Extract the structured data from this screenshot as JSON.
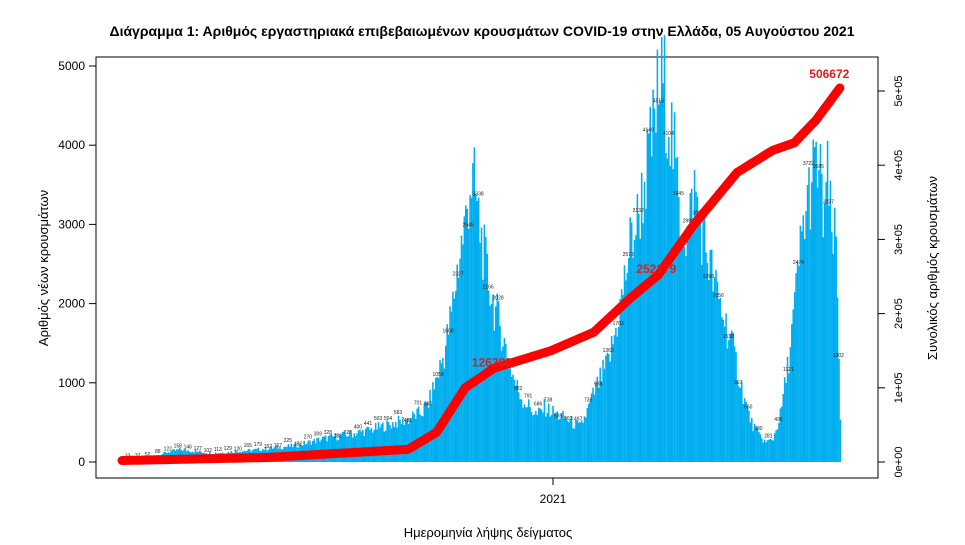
{
  "chart_data": {
    "type": "bar",
    "title": "Διάγραμμα 1: Αριθμός εργαστηριακά επιβεβαιωμένων κρουσμάτων COVID-19 στην Ελλάδα, 05 Αυγούστου 2021",
    "xlabel": "Ημερομηνία λήψης δείγματος",
    "ylabel": "Αριθμός νέων κρουσμάτων",
    "y2label": "Συνολικός αριθμός κρουσμάτων",
    "x_tick_labels": [
      "2021"
    ],
    "y_ticks": [
      0,
      1000,
      2000,
      3000,
      4000,
      5000
    ],
    "y_tick_labels": [
      "0",
      "1000",
      "2000",
      "3000",
      "4000",
      "5000"
    ],
    "y2_ticks": [
      0,
      100000,
      200000,
      300000,
      400000,
      500000
    ],
    "y2_tick_labels": [
      "0e+00",
      "1e+05",
      "2e+05",
      "3e+05",
      "4e+05",
      "5e+05"
    ],
    "ylim": [
      0,
      5000
    ],
    "y2lim": [
      0,
      500000
    ],
    "grid": false,
    "bar_color": "#00aeef",
    "line_color": "#ff0000",
    "series": [
      {
        "type": "bar",
        "axis": "left",
        "name": "",
        "breakpoints": [
          [
            0,
            30
          ],
          [
            10,
            40
          ],
          [
            20,
            60
          ],
          [
            30,
            120
          ],
          [
            40,
            160
          ],
          [
            50,
            140
          ],
          [
            60,
            120
          ],
          [
            70,
            120
          ],
          [
            80,
            140
          ],
          [
            90,
            150
          ],
          [
            100,
            170
          ],
          [
            110,
            190
          ],
          [
            120,
            210
          ],
          [
            130,
            250
          ],
          [
            140,
            300
          ],
          [
            150,
            330
          ],
          [
            160,
            360
          ],
          [
            170,
            400
          ],
          [
            180,
            450
          ],
          [
            190,
            500
          ],
          [
            200,
            550
          ],
          [
            210,
            650
          ],
          [
            215,
            800
          ],
          [
            220,
            1100
          ],
          [
            225,
            1400
          ],
          [
            230,
            1900
          ],
          [
            235,
            2600
          ],
          [
            240,
            3100
          ],
          [
            243,
            3611
          ],
          [
            246,
            3543
          ],
          [
            250,
            3000
          ],
          [
            255,
            2400
          ],
          [
            260,
            2000
          ],
          [
            265,
            1700
          ],
          [
            270,
            1300
          ],
          [
            275,
            1000
          ],
          [
            280,
            800
          ],
          [
            285,
            700
          ],
          [
            290,
            600
          ],
          [
            295,
            700
          ],
          [
            300,
            650
          ],
          [
            305,
            600
          ],
          [
            310,
            560
          ],
          [
            315,
            500
          ],
          [
            320,
            450
          ],
          [
            325,
            650
          ],
          [
            330,
            900
          ],
          [
            335,
            1100
          ],
          [
            340,
            1300
          ],
          [
            345,
            1700
          ],
          [
            350,
            2200
          ],
          [
            355,
            2800
          ],
          [
            360,
            3100
          ],
          [
            365,
            3600
          ],
          [
            370,
            4100
          ],
          [
            374,
            4680
          ],
          [
            378,
            4924
          ],
          [
            382,
            4500
          ],
          [
            386,
            3900
          ],
          [
            390,
            3200
          ],
          [
            395,
            2900
          ],
          [
            400,
            3500
          ],
          [
            405,
            3000
          ],
          [
            410,
            2600
          ],
          [
            415,
            2200
          ],
          [
            420,
            1900
          ],
          [
            425,
            1600
          ],
          [
            430,
            1200
          ],
          [
            435,
            800
          ],
          [
            440,
            500
          ],
          [
            445,
            350
          ],
          [
            450,
            250
          ],
          [
            455,
            300
          ],
          [
            460,
            600
          ],
          [
            465,
            1200
          ],
          [
            470,
            2000
          ],
          [
            475,
            2900
          ],
          [
            480,
            3465
          ],
          [
            484,
            3743
          ],
          [
            487,
            3793
          ],
          [
            490,
            3200
          ],
          [
            493,
            3614
          ],
          [
            496,
            2900
          ],
          [
            499,
            2800
          ],
          [
            502,
            600
          ]
        ],
        "labeled_values": [
          3611,
          3543,
          4680,
          4924,
          4259,
          3586,
          3465,
          3743,
          3793,
          3614,
          3435,
          3448,
          3012,
          2604,
          2441,
          2461,
          3016,
          1715,
          1118,
          1088,
          1314,
          160,
          161,
          668
        ]
      },
      {
        "type": "line",
        "axis": "right",
        "name": "",
        "breakpoints": [
          [
            0,
            2000
          ],
          [
            100,
            6000
          ],
          [
            200,
            17000
          ],
          [
            220,
            40000
          ],
          [
            240,
            100000
          ],
          [
            260,
            126280
          ],
          [
            300,
            150000
          ],
          [
            330,
            175000
          ],
          [
            355,
            220000
          ],
          [
            375,
            252179
          ],
          [
            400,
            320000
          ],
          [
            430,
            390000
          ],
          [
            455,
            420000
          ],
          [
            470,
            430000
          ],
          [
            485,
            460000
          ],
          [
            503,
            506672
          ]
        ],
        "annotations": [
          {
            "x": 260,
            "value": 126280,
            "label": "126280"
          },
          {
            "x": 375,
            "value": 252179,
            "label": "252179"
          },
          {
            "x": 503,
            "value": 506672,
            "label": "506672"
          }
        ]
      }
    ]
  }
}
